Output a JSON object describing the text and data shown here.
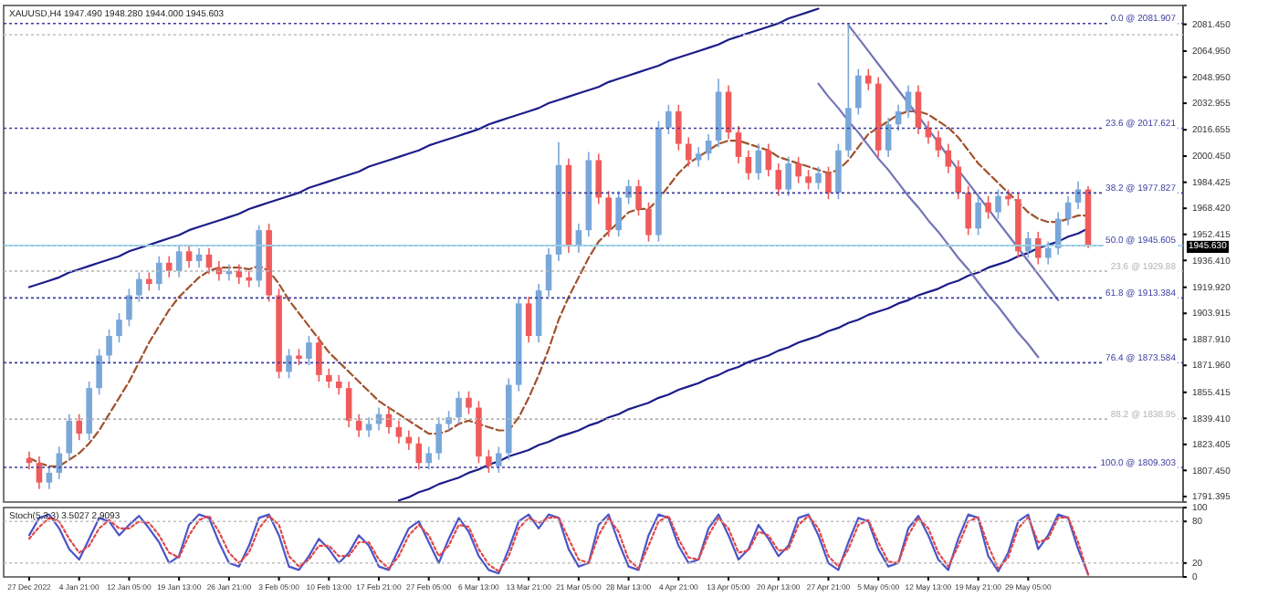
{
  "chart_data": [
    {
      "type": "candlestick",
      "title": "XAUUSD,H4  1947.490 1948.280 1944.000 1945.603",
      "categories": [
        null,
        null,
        null,
        null,
        null,
        null,
        null,
        null,
        null,
        null,
        null,
        null,
        null,
        null,
        null,
        null,
        null,
        null,
        null,
        null,
        null,
        null,
        null,
        null,
        null,
        null,
        null,
        null,
        null,
        null,
        null,
        null,
        null,
        null,
        null,
        null,
        null,
        null,
        null,
        null,
        null,
        null,
        null,
        null,
        null,
        null,
        null,
        null,
        null,
        null,
        null,
        null,
        null,
        null,
        null,
        null,
        null,
        null,
        null,
        null,
        null,
        null,
        null,
        null,
        null,
        null,
        null,
        null,
        null,
        null,
        null,
        null,
        null,
        null,
        null,
        null,
        null,
        null,
        null,
        null,
        null,
        null,
        null,
        null,
        null,
        null,
        null,
        null,
        null,
        null,
        null,
        null,
        null,
        null,
        null,
        null,
        null,
        null,
        null,
        null,
        null,
        null,
        null,
        null,
        null,
        null,
        null
      ],
      "ylim": [
        1788,
        2093
      ],
      "yticks": [
        {
          "value": 2081.45,
          "label": "2081.450"
        },
        {
          "value": 2064.95,
          "label": "2064.950"
        },
        {
          "value": 2048.95,
          "label": "2048.950"
        },
        {
          "value": 2032.955,
          "label": "2032.955"
        },
        {
          "value": 2016.655,
          "label": "2016.655"
        },
        {
          "value": 2000.45,
          "label": "2000.450"
        },
        {
          "value": 1984.425,
          "label": "1984.425"
        },
        {
          "value": 1968.42,
          "label": "1968.420"
        },
        {
          "value": 1952.415,
          "label": "1952.415"
        },
        {
          "value": 1936.41,
          "label": "1936.410"
        },
        {
          "value": 1919.92,
          "label": "1919.920"
        },
        {
          "value": 1903.915,
          "label": "1903.915"
        },
        {
          "value": 1887.91,
          "label": "1887.910"
        },
        {
          "value": 1871.96,
          "label": "1871.960"
        },
        {
          "value": 1855.415,
          "label": "1855.415"
        },
        {
          "value": 1839.41,
          "label": "1839.410"
        },
        {
          "value": 1823.405,
          "label": "1823.405"
        },
        {
          "value": 1807.45,
          "label": "1807.450"
        },
        {
          "value": 1791.395,
          "label": "1791.395"
        }
      ],
      "ohlc": [
        [
          1815,
          1819,
          1808,
          1812
        ],
        [
          1812,
          1816,
          1796,
          1800
        ],
        [
          1800,
          1810,
          1796,
          1806
        ],
        [
          1806,
          1822,
          1802,
          1818
        ],
        [
          1818,
          1842,
          1814,
          1838
        ],
        [
          1838,
          1842,
          1826,
          1830
        ],
        [
          1830,
          1862,
          1826,
          1858
        ],
        [
          1858,
          1882,
          1854,
          1878
        ],
        [
          1878,
          1894,
          1874,
          1890
        ],
        [
          1890,
          1904,
          1886,
          1900
        ],
        [
          1900,
          1919,
          1896,
          1915
        ],
        [
          1915,
          1929,
          1911,
          1925
        ],
        [
          1925,
          1929,
          1918,
          1922
        ],
        [
          1922,
          1939,
          1918,
          1935
        ],
        [
          1935,
          1939,
          1926,
          1930
        ],
        [
          1930,
          1946,
          1926,
          1942
        ],
        [
          1942,
          1946,
          1932,
          1936
        ],
        [
          1936,
          1944,
          1932,
          1940
        ],
        [
          1940,
          1944,
          1928,
          1932
        ],
        [
          1932,
          1936,
          1924,
          1928
        ],
        [
          1928,
          1934,
          1924,
          1930
        ],
        [
          1930,
          1934,
          1922,
          1926
        ],
        [
          1926,
          1930,
          1920,
          1924
        ],
        [
          1924,
          1958,
          1920,
          1955
        ],
        [
          1955,
          1959,
          1911,
          1915
        ],
        [
          1915,
          1919,
          1864,
          1868
        ],
        [
          1868,
          1882,
          1864,
          1878
        ],
        [
          1878,
          1882,
          1872,
          1876
        ],
        [
          1876,
          1890,
          1872,
          1886
        ],
        [
          1886,
          1890,
          1862,
          1866
        ],
        [
          1866,
          1870,
          1858,
          1862
        ],
        [
          1862,
          1866,
          1854,
          1858
        ],
        [
          1858,
          1862,
          1834,
          1838
        ],
        [
          1838,
          1842,
          1828,
          1832
        ],
        [
          1832,
          1840,
          1828,
          1836
        ],
        [
          1836,
          1846,
          1832,
          1842
        ],
        [
          1842,
          1846,
          1830,
          1834
        ],
        [
          1834,
          1838,
          1824,
          1828
        ],
        [
          1828,
          1832,
          1820,
          1824
        ],
        [
          1824,
          1828,
          1808,
          1812
        ],
        [
          1812,
          1822,
          1808,
          1818
        ],
        [
          1818,
          1840,
          1814,
          1836
        ],
        [
          1836,
          1844,
          1832,
          1840
        ],
        [
          1840,
          1856,
          1836,
          1852
        ],
        [
          1852,
          1856,
          1842,
          1846
        ],
        [
          1846,
          1850,
          1812,
          1816
        ],
        [
          1816,
          1820,
          1806,
          1810
        ],
        [
          1810,
          1822,
          1806,
          1818
        ],
        [
          1818,
          1864,
          1814,
          1860
        ],
        [
          1860,
          1914,
          1856,
          1910
        ],
        [
          1910,
          1914,
          1886,
          1890
        ],
        [
          1890,
          1922,
          1886,
          1918
        ],
        [
          1918,
          1944,
          1914,
          1940
        ],
        [
          1940,
          2009,
          1936,
          1995
        ],
        [
          1995,
          1999,
          1941,
          1945
        ],
        [
          1945,
          1959,
          1941,
          1955
        ],
        [
          1955,
          2003,
          1951,
          1998
        ],
        [
          1998,
          2002,
          1971,
          1975
        ],
        [
          1975,
          1979,
          1951,
          1955
        ],
        [
          1955,
          1979,
          1951,
          1975
        ],
        [
          1975,
          1986,
          1971,
          1982
        ],
        [
          1982,
          1986,
          1964,
          1968
        ],
        [
          1968,
          1972,
          1948,
          1952
        ],
        [
          1952,
          2022,
          1948,
          2018
        ],
        [
          2018,
          2032,
          2014,
          2028
        ],
        [
          2028,
          2032,
          2004,
          2008
        ],
        [
          2008,
          2012,
          1994,
          1998
        ],
        [
          1998,
          2006,
          1994,
          2002
        ],
        [
          2002,
          2014,
          1998,
          2010
        ],
        [
          2010,
          2048,
          2006,
          2040
        ],
        [
          2040,
          2044,
          2011,
          2015
        ],
        [
          2015,
          2019,
          1996,
          2000
        ],
        [
          2000,
          2004,
          1986,
          1990
        ],
        [
          1990,
          2008,
          1986,
          2004
        ],
        [
          2004,
          2008,
          1988,
          1992
        ],
        [
          1992,
          1996,
          1976,
          1980
        ],
        [
          1980,
          2000,
          1976,
          1996
        ],
        [
          1996,
          2000,
          1984,
          1988
        ],
        [
          1988,
          1992,
          1980,
          1984
        ],
        [
          1984,
          1994,
          1980,
          1990
        ],
        [
          1990,
          1994,
          1974,
          1978
        ],
        [
          1978,
          2008,
          1974,
          2004
        ],
        [
          2004,
          2081,
          2000,
          2030
        ],
        [
          2030,
          2054,
          2026,
          2050
        ],
        [
          2050,
          2054,
          2041,
          2045
        ],
        [
          2045,
          2049,
          2000,
          2004
        ],
        [
          2004,
          2024,
          2000,
          2020
        ],
        [
          2020,
          2032,
          2016,
          2028
        ],
        [
          2028,
          2044,
          2024,
          2040
        ],
        [
          2040,
          2044,
          2014,
          2018
        ],
        [
          2018,
          2022,
          2008,
          2012
        ],
        [
          2012,
          2016,
          2000,
          2004
        ],
        [
          2004,
          2008,
          1990,
          1994
        ],
        [
          1994,
          1998,
          1974,
          1978
        ],
        [
          1978,
          1982,
          1952,
          1956
        ],
        [
          1956,
          1976,
          1952,
          1972
        ],
        [
          1972,
          1976,
          1962,
          1966
        ],
        [
          1966,
          1980,
          1962,
          1976
        ],
        [
          1976,
          1980,
          1970,
          1974
        ],
        [
          1974,
          1978,
          1938,
          1942
        ],
        [
          1942,
          1954,
          1938,
          1950
        ],
        [
          1950,
          1954,
          1934,
          1938
        ],
        [
          1938,
          1948,
          1934,
          1944
        ],
        [
          1944,
          1966,
          1940,
          1962
        ],
        [
          1962,
          1976,
          1958,
          1972
        ],
        [
          1972,
          1985,
          1968,
          1980
        ],
        [
          1980,
          1982,
          1944,
          1945.6
        ]
      ],
      "colors": [
        "#ef5b5b",
        "#ef5b5b",
        "#79a7d9",
        "#79a7d9",
        "#79a7d9",
        "#ef5b5b",
        "#79a7d9",
        "#79a7d9",
        "#79a7d9",
        "#79a7d9",
        "#79a7d9",
        "#79a7d9",
        "#ef5b5b",
        "#79a7d9",
        "#ef5b5b",
        "#79a7d9",
        "#ef5b5b",
        "#79a7d9",
        "#ef5b5b",
        "#ef5b5b",
        "#79a7d9",
        "#ef5b5b",
        "#ef5b5b",
        "#79a7d9",
        "#ef5b5b",
        "#ef5b5b",
        "#79a7d9",
        "#ef5b5b",
        "#79a7d9",
        "#ef5b5b",
        "#ef5b5b",
        "#ef5b5b",
        "#ef5b5b",
        "#ef5b5b",
        "#79a7d9",
        "#79a7d9",
        "#ef5b5b",
        "#ef5b5b",
        "#ef5b5b",
        "#ef5b5b",
        "#79a7d9",
        "#79a7d9",
        "#79a7d9",
        "#79a7d9",
        "#ef5b5b",
        "#ef5b5b",
        "#ef5b5b",
        "#79a7d9",
        "#79a7d9",
        "#79a7d9",
        "#ef5b5b",
        "#79a7d9",
        "#79a7d9",
        "#79a7d9",
        "#ef5b5b",
        "#79a7d9",
        "#79a7d9",
        "#ef5b5b",
        "#ef5b5b",
        "#79a7d9",
        "#79a7d9",
        "#ef5b5b",
        "#ef5b5b",
        "#79a7d9",
        "#79a7d9",
        "#ef5b5b",
        "#ef5b5b",
        "#79a7d9",
        "#79a7d9",
        "#79a7d9",
        "#ef5b5b",
        "#ef5b5b",
        "#ef5b5b",
        "#79a7d9",
        "#ef5b5b",
        "#ef5b5b",
        "#79a7d9",
        "#ef5b5b",
        "#ef5b5b",
        "#79a7d9",
        "#ef5b5b",
        "#79a7d9",
        "#79a7d9",
        "#79a7d9",
        "#ef5b5b",
        "#ef5b5b",
        "#79a7d9",
        "#79a7d9",
        "#79a7d9",
        "#ef5b5b",
        "#ef5b5b",
        "#ef5b5b",
        "#ef5b5b",
        "#ef5b5b",
        "#ef5b5b",
        "#79a7d9",
        "#ef5b5b",
        "#79a7d9",
        "#ef5b5b",
        "#ef5b5b",
        "#79a7d9",
        "#ef5b5b",
        "#79a7d9",
        "#79a7d9",
        "#79a7d9",
        "#79a7d9",
        "#ef5b5b"
      ],
      "series": [
        {
          "type": "line",
          "color": "#a0522d",
          "line_style": "dashed",
          "values": [
            1815,
            1812,
            1810,
            1810,
            1814,
            1818,
            1824,
            1832,
            1842,
            1852,
            1862,
            1874,
            1886,
            1896,
            1906,
            1914,
            1920,
            1926,
            1930,
            1932,
            1932,
            1932,
            1931,
            1933,
            1930,
            1922,
            1912,
            1904,
            1896,
            1888,
            1880,
            1874,
            1868,
            1862,
            1856,
            1850,
            1846,
            1842,
            1838,
            1834,
            1830,
            1830,
            1832,
            1836,
            1838,
            1836,
            1834,
            1832,
            1832,
            1840,
            1852,
            1866,
            1882,
            1900,
            1914,
            1926,
            1938,
            1948,
            1954,
            1960,
            1966,
            1968,
            1968,
            1974,
            1982,
            1990,
            1996,
            2000,
            2004,
            2008,
            2010,
            2010,
            2008,
            2006,
            2004,
            2000,
            1998,
            1996,
            1994,
            1992,
            1990,
            1992,
            1998,
            2006,
            2014,
            2018,
            2022,
            2026,
            2028,
            2028,
            2026,
            2022,
            2018,
            2012,
            2004,
            1996,
            1990,
            1984,
            1978,
            1972,
            1966,
            1962,
            1960,
            1960,
            1962,
            1964,
            1964
          ]
        },
        {
          "type": "line",
          "color": "#1c1c8a",
          "values": [
            1920,
            1922,
            1924,
            1926,
            1929,
            1931,
            1933,
            1935,
            1937,
            1939,
            1942,
            1944,
            1946,
            1948,
            1950,
            1952,
            1955,
            1957,
            1959,
            1961,
            1963,
            1965,
            1968,
            1970,
            1972,
            1974,
            1976,
            1978,
            1981,
            1983,
            1985,
            1987,
            1989,
            1991,
            1994,
            1996,
            1998,
            2000,
            2002,
            2004,
            2007,
            2009,
            2011,
            2013,
            2015,
            2017,
            2020,
            2022,
            2024,
            2026,
            2028,
            2030,
            2033,
            2035,
            2037,
            2039,
            2041,
            2043,
            2046,
            2048,
            2050,
            2052,
            2054,
            2056,
            2059,
            2061,
            2063,
            2065,
            2067,
            2069,
            2072,
            2074,
            2076,
            2078,
            2080,
            2082,
            2085,
            2087,
            2089,
            2091,
            null,
            null,
            null,
            null,
            null,
            null,
            null,
            null,
            null,
            null,
            null,
            null,
            null,
            null,
            null,
            null,
            null,
            null,
            null,
            null,
            null,
            null,
            null,
            null,
            null,
            null,
            null
          ]
        },
        {
          "type": "line",
          "color": "#1c1c8a",
          "values": [
            null,
            null,
            null,
            null,
            null,
            null,
            null,
            null,
            null,
            null,
            null,
            null,
            null,
            null,
            null,
            null,
            null,
            null,
            null,
            null,
            null,
            null,
            null,
            null,
            null,
            null,
            null,
            null,
            null,
            null,
            null,
            null,
            null,
            null,
            null,
            null,
            null,
            1789,
            1791,
            1794,
            1796,
            1799,
            1801,
            1803,
            1806,
            1808,
            1811,
            1813,
            1816,
            1818,
            1820,
            1823,
            1825,
            1828,
            1830,
            1832,
            1835,
            1837,
            1840,
            1842,
            1845,
            1847,
            1849,
            1852,
            1854,
            1857,
            1859,
            1861,
            1864,
            1866,
            1869,
            1871,
            1874,
            1876,
            1878,
            1881,
            1883,
            1886,
            1888,
            1890,
            1893,
            1895,
            1898,
            1900,
            1903,
            1905,
            1907,
            1910,
            1912,
            1915,
            1917,
            1919,
            1922,
            1924,
            1927,
            1929,
            1932,
            1934,
            1936,
            1939,
            1941,
            1944,
            1946,
            1948,
            1951,
            1953,
            1956
          ]
        },
        {
          "type": "line",
          "color": "#7474b8",
          "values": [
            null,
            null,
            null,
            null,
            null,
            null,
            null,
            null,
            null,
            null,
            null,
            null,
            null,
            null,
            null,
            null,
            null,
            null,
            null,
            null,
            null,
            null,
            null,
            null,
            null,
            null,
            null,
            null,
            null,
            null,
            null,
            null,
            null,
            null,
            null,
            null,
            null,
            null,
            null,
            null,
            null,
            null,
            null,
            null,
            null,
            null,
            null,
            null,
            null,
            null,
            null,
            null,
            null,
            null,
            null,
            null,
            null,
            null,
            null,
            null,
            null,
            null,
            null,
            null,
            null,
            null,
            null,
            null,
            null,
            null,
            null,
            null,
            null,
            null,
            null,
            null,
            null,
            null,
            null,
            null,
            null,
            null,
            2081,
            2073,
            2065,
            2057,
            2049,
            2041,
            2033,
            2025,
            2017,
            2009,
            2000,
            1992,
            1984,
            1976,
            1968,
            1960,
            1952,
            1944,
            1936,
            1928,
            1920,
            1912,
            null,
            null,
            null
          ]
        },
        {
          "type": "line",
          "color": "#7474b8",
          "values": [
            null,
            null,
            null,
            null,
            null,
            null,
            null,
            null,
            null,
            null,
            null,
            null,
            null,
            null,
            null,
            null,
            null,
            null,
            null,
            null,
            null,
            null,
            null,
            null,
            null,
            null,
            null,
            null,
            null,
            null,
            null,
            null,
            null,
            null,
            null,
            null,
            null,
            null,
            null,
            null,
            null,
            null,
            null,
            null,
            null,
            null,
            null,
            null,
            null,
            null,
            null,
            null,
            null,
            null,
            null,
            null,
            null,
            null,
            null,
            null,
            null,
            null,
            null,
            null,
            null,
            null,
            null,
            null,
            null,
            null,
            null,
            null,
            null,
            null,
            null,
            null,
            null,
            null,
            null,
            2045,
            2037,
            2030,
            2022,
            2015,
            2007,
            1999,
            1992,
            1984,
            1976,
            1969,
            1961,
            1954,
            1946,
            1938,
            1931,
            1923,
            1915,
            1908,
            1900,
            1892,
            1885,
            1877,
            null,
            null,
            null,
            null,
            null
          ]
        }
      ],
      "ref_lines": [
        {
          "axis": "y",
          "value": 2081.907,
          "label": "0.0 @ 2081.907",
          "color": "#3c3ca0",
          "line_style": "dotted"
        },
        {
          "axis": "y",
          "value": 2075,
          "label": null,
          "color": "#c8c8c8",
          "line_style": "dotted"
        },
        {
          "axis": "y",
          "value": 2017.621,
          "label": "23.6 @ 2017.621",
          "color": "#3c3ca0",
          "line_style": "dotted"
        },
        {
          "axis": "y",
          "value": 1977.827,
          "label": "38.2 @ 1977.827",
          "color": "#3c3ca0",
          "line_style": "dotted"
        },
        {
          "axis": "y",
          "value": 1945.605,
          "label": "50.0 @ 1945.605",
          "color": "#3c3ca0",
          "line_style": "dotted"
        },
        {
          "axis": "y",
          "value": 1929.88,
          "label": "23.6 @ 1929.88",
          "color": "#b4b4b4",
          "line_style": "dotted"
        },
        {
          "axis": "y",
          "value": 1913.384,
          "label": "61.8 @ 1913.384",
          "color": "#3c3ca0",
          "line_style": "dotted"
        },
        {
          "axis": "y",
          "value": 1873.584,
          "label": "76.4 @ 1873.584",
          "color": "#3c3ca0",
          "line_style": "dotted"
        },
        {
          "axis": "y",
          "value": 1838.95,
          "label": "88.2 @ 1838.95",
          "color": "#b4b4b4",
          "line_style": "dotted"
        },
        {
          "axis": "y",
          "value": 1809.303,
          "label": "100.0 @ 1809.303",
          "color": "#3c3ca0",
          "line_style": "dotted"
        },
        {
          "axis": "y",
          "value": 1945.63,
          "label": "1945.630",
          "color": "#9fd3e6",
          "line_style": "solid"
        }
      ]
    },
    {
      "type": "line",
      "title": "Stoch(5,3,3) 3.5027 2.9093",
      "categories": [
        "27 Dec 2022",
        null,
        null,
        null,
        null,
        "4 Jan 21:00",
        null,
        null,
        null,
        null,
        "12 Jan 05:00",
        null,
        null,
        null,
        null,
        "19 Jan 13:00",
        null,
        null,
        null,
        null,
        "26 Jan 21:00",
        null,
        null,
        null,
        null,
        "3 Feb 05:00",
        null,
        null,
        null,
        null,
        "10 Feb 13:00",
        null,
        null,
        null,
        null,
        "17 Feb 21:00",
        null,
        null,
        null,
        null,
        "27 Feb 05:00",
        null,
        null,
        null,
        null,
        "6 Mar 13:00",
        null,
        null,
        null,
        null,
        "13 Mar 21:00",
        null,
        null,
        null,
        null,
        "21 Mar 05:00",
        null,
        null,
        null,
        null,
        "28 Mar 13:00",
        null,
        null,
        null,
        null,
        "4 Apr 21:00",
        null,
        null,
        null,
        null,
        "13 Apr 05:00",
        null,
        null,
        null,
        null,
        "20 Apr 13:00",
        null,
        null,
        null,
        null,
        "27 Apr 21:00",
        null,
        null,
        null,
        null,
        "5 May 05:00",
        null,
        null,
        null,
        null,
        "12 May 13:00",
        null,
        null,
        null,
        null,
        "19 May 21:00",
        null,
        null,
        null,
        null,
        "29 May 05:00",
        null,
        null,
        null,
        null,
        null,
        null
      ],
      "ylim": [
        0,
        100
      ],
      "yticks": [
        0,
        20,
        80,
        100
      ],
      "ref_lines": [
        {
          "axis": "y",
          "value": 20,
          "label": null,
          "color": "#c0c0c0",
          "line_style": "dotted"
        },
        {
          "axis": "y",
          "value": 80,
          "label": null,
          "color": "#c0c0c0",
          "line_style": "dotted"
        }
      ],
      "series": [
        {
          "color": "#4b55c8",
          "line_style": "solid",
          "values": [
            60,
            85,
            90,
            70,
            40,
            25,
            55,
            85,
            80,
            60,
            75,
            88,
            70,
            50,
            20,
            30,
            75,
            90,
            85,
            50,
            20,
            15,
            45,
            85,
            90,
            60,
            15,
            10,
            30,
            55,
            40,
            20,
            35,
            60,
            45,
            15,
            10,
            40,
            70,
            80,
            50,
            20,
            55,
            85,
            65,
            30,
            10,
            5,
            40,
            80,
            90,
            70,
            90,
            85,
            40,
            15,
            20,
            75,
            90,
            50,
            15,
            10,
            60,
            90,
            85,
            45,
            20,
            25,
            70,
            90,
            60,
            25,
            40,
            75,
            55,
            30,
            45,
            85,
            90,
            60,
            20,
            10,
            50,
            85,
            80,
            40,
            15,
            20,
            70,
            88,
            60,
            25,
            10,
            55,
            90,
            85,
            30,
            8,
            35,
            80,
            90,
            40,
            60,
            90,
            85,
            40,
            4
          ]
        },
        {
          "color": "#e04848",
          "line_style": "dotted",
          "values": [
            55,
            72,
            85,
            80,
            55,
            35,
            45,
            70,
            82,
            70,
            70,
            80,
            78,
            60,
            35,
            28,
            60,
            82,
            88,
            65,
            35,
            20,
            35,
            70,
            88,
            75,
            30,
            15,
            25,
            45,
            45,
            30,
            30,
            50,
            50,
            25,
            12,
            30,
            60,
            75,
            60,
            30,
            45,
            75,
            72,
            40,
            18,
            8,
            30,
            70,
            85,
            78,
            85,
            86,
            55,
            25,
            20,
            60,
            85,
            65,
            25,
            12,
            45,
            80,
            88,
            55,
            28,
            25,
            60,
            85,
            70,
            35,
            38,
            65,
            60,
            38,
            40,
            75,
            88,
            70,
            30,
            15,
            40,
            75,
            82,
            50,
            22,
            20,
            60,
            85,
            70,
            35,
            15,
            45,
            80,
            86,
            45,
            12,
            28,
            70,
            86,
            50,
            55,
            85,
            86,
            50,
            3
          ]
        }
      ]
    }
  ]
}
